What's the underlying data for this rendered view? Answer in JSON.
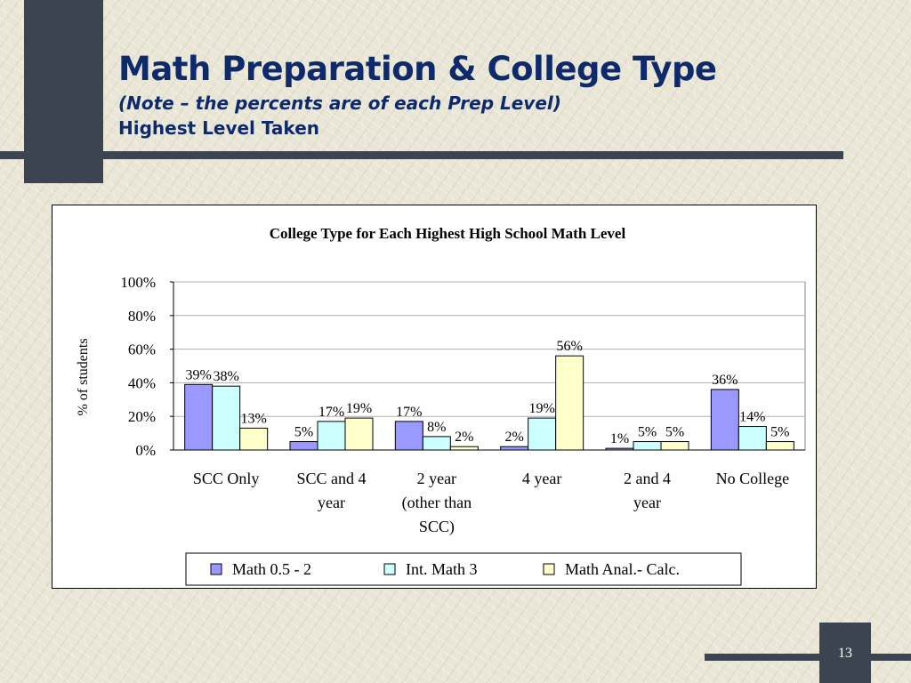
{
  "slide": {
    "title": "Math Preparation & College Type",
    "subtitle_note": "(Note – the percents are of each Prep Level)",
    "subtitle_level": "Highest Level Taken",
    "page_number": "13",
    "colors": {
      "background": "#e9e6d6",
      "dark_accent": "#3c4452",
      "title_text": "#0e2a6b"
    }
  },
  "chart_data": {
    "type": "bar",
    "title": "College Type for Each Highest High School Math  Level",
    "xlabel": "",
    "ylabel": "% of students",
    "ylim": [
      0,
      100
    ],
    "yticks": [
      "0%",
      "20%",
      "40%",
      "60%",
      "80%",
      "100%"
    ],
    "categories": [
      [
        "SCC Only"
      ],
      [
        "SCC and 4",
        "year"
      ],
      [
        "2 year",
        "(other than",
        "SCC)"
      ],
      [
        "4 year"
      ],
      [
        "2 and  4",
        "year"
      ],
      [
        "No College"
      ]
    ],
    "series": [
      {
        "name": "Math 0.5 - 2",
        "color": "#9999ff",
        "values": [
          39,
          5,
          17,
          2,
          1,
          36
        ],
        "labels": [
          "39%",
          "5%",
          "17%",
          "2%",
          "1%",
          "36%"
        ]
      },
      {
        "name": "Int. Math 3",
        "color": "#ccffff",
        "values": [
          38,
          17,
          8,
          19,
          5,
          14
        ],
        "labels": [
          "38%",
          "17%",
          "8%",
          "19%",
          "5%",
          "14%"
        ]
      },
      {
        "name": "Math Anal.- Calc.",
        "color": "#ffffcc",
        "values": [
          13,
          19,
          2,
          56,
          5,
          5
        ],
        "labels": [
          "13%",
          "19%",
          "2%",
          "56%",
          "5%",
          "5%"
        ]
      }
    ],
    "grid": true,
    "legend": "bottom"
  }
}
